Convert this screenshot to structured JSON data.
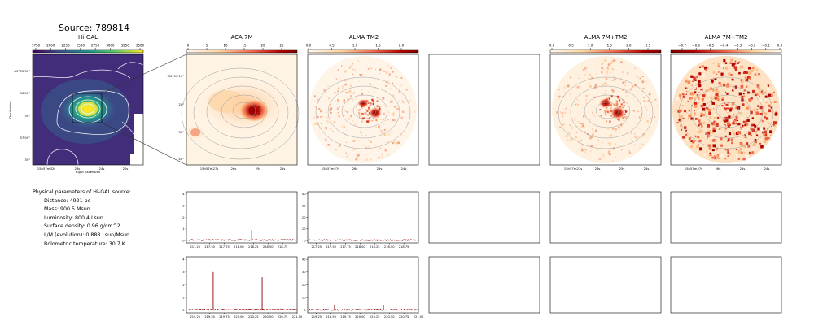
{
  "header": {
    "source_label": "Source: 789814"
  },
  "panels": {
    "higal": {
      "title": "Hi-GAL",
      "colorbar_ticks": [
        "1750",
        "2000",
        "2250",
        "2500",
        "2750",
        "3000",
        "3250",
        "3500"
      ],
      "ra_ticks": [
        "15h57m32s",
        "28s",
        "24s",
        "20s"
      ],
      "dec_ticks": [
        "-52°55'30\"",
        "56'00\"",
        "30\"",
        "57'00\"",
        "30\""
      ],
      "xlabel": "Right Ascension",
      "ylabel": "Declination"
    },
    "aca": {
      "title": "ACA 7M",
      "colorbar_ticks": [
        "0",
        "5",
        "10",
        "15",
        "20",
        "25"
      ],
      "ra_ticks": [
        "15h57m27s",
        "26s",
        "25s",
        "24s"
      ],
      "dec_ticks": [
        "-52°56'10\"",
        "20\"",
        "30\"",
        "40\""
      ]
    },
    "alma_tm2": {
      "title": "ALMA TM2",
      "colorbar_ticks": [
        "0.0",
        "0.5",
        "1.0",
        "1.5",
        "2.0"
      ],
      "ra_ticks": [
        "15h57m27s",
        "26s",
        "25s",
        "24s"
      ]
    },
    "alma_combo": {
      "title": "ALMA 7M+TM2",
      "colorbar_ticks": [
        "0.0",
        "0.5",
        "1.0",
        "1.5",
        "2.0",
        "2.5"
      ],
      "ra_ticks": [
        "15h57m27s",
        "26s",
        "25s",
        "24s"
      ]
    },
    "alma_combo_neg": {
      "title": "ALMA 7M+TM2",
      "colorbar_ticks": [
        "−0.7",
        "−0.6",
        "−0.5",
        "−0.4",
        "−0.3",
        "−0.2",
        "−0.1",
        "0.0"
      ],
      "ra_ticks": [
        "15h57m27s",
        "26s",
        "25s",
        "24s"
      ]
    }
  },
  "info": {
    "heading": "Physical parameters of Hi-GAL source:",
    "lines": [
      "Distance: 4921 pc",
      "Mass: 900.5 Msun",
      "Luminosity: 800.4 Lsun",
      "Surface density: 0.96 g/cm^2",
      "L/M (evolution): 0.888 Lsun/Msun",
      "Bolometric temperature: 30.7 K"
    ]
  },
  "chart_data": [
    {
      "type": "line",
      "panel": "aca_spectrum_1",
      "xlim": [
        217.1,
        219.0
      ],
      "ylim": [
        -0.2,
        4.2
      ],
      "x_ticks": [
        217.25,
        217.5,
        217.75,
        218.0,
        218.25,
        218.5,
        218.75
      ],
      "x_tick_labels": [
        "217.25",
        "217.50",
        "217.75",
        "218.00",
        "218.25",
        "218.50",
        "218.75"
      ],
      "y_ticks": [
        0,
        1,
        2,
        3,
        4
      ],
      "y_tick_labels": [
        "0",
        "1",
        "2",
        "3",
        "4"
      ],
      "baseline": 0.05,
      "peaks": [
        {
          "x": 218.22,
          "y": 0.9
        }
      ],
      "color": "#8b0000"
    },
    {
      "type": "line",
      "panel": "tm2_spectrum_1",
      "xlim": [
        217.1,
        219.0
      ],
      "ylim": [
        -2,
        42
      ],
      "x_ticks": [
        217.25,
        217.5,
        217.75,
        218.0,
        218.25,
        218.5,
        218.75
      ],
      "x_tick_labels": [
        "217.25",
        "217.50",
        "217.75",
        "218.00",
        "218.25",
        "218.50",
        "218.75"
      ],
      "y_ticks": [
        0,
        10,
        20,
        30,
        40
      ],
      "y_tick_labels": [
        "0",
        "10",
        "20",
        "30",
        "40"
      ],
      "baseline": 0.4,
      "peaks": [],
      "color": "#8b0000"
    },
    {
      "type": "line",
      "panel": "aca_spectrum_2",
      "xlim": [
        219.1,
        221.0
      ],
      "ylim": [
        -0.2,
        4.2
      ],
      "x_ticks": [
        219.25,
        219.5,
        219.75,
        220.0,
        220.25,
        220.5,
        220.75,
        221.0
      ],
      "x_tick_labels": [
        "219.25",
        "219.50",
        "219.75",
        "220.00",
        "220.25",
        "220.50",
        "220.75",
        "221.00"
      ],
      "y_ticks": [
        0,
        1,
        2,
        3,
        4
      ],
      "y_tick_labels": [
        "0",
        "1",
        "2",
        "3",
        "4"
      ],
      "baseline": 0.05,
      "peaks": [
        {
          "x": 219.56,
          "y": 3.0
        },
        {
          "x": 220.4,
          "y": 2.6
        }
      ],
      "color": "#8b0000"
    },
    {
      "type": "line",
      "panel": "tm2_spectrum_2",
      "xlim": [
        219.1,
        221.0
      ],
      "ylim": [
        -2,
        42
      ],
      "x_ticks": [
        219.25,
        219.5,
        219.75,
        220.0,
        220.25,
        220.5,
        220.75,
        221.0
      ],
      "x_tick_labels": [
        "219.25",
        "219.50",
        "219.75",
        "220.00",
        "220.25",
        "220.50",
        "220.75",
        "221.00"
      ],
      "y_ticks": [
        0,
        10,
        20,
        30,
        40
      ],
      "y_tick_labels": [
        "0",
        "10",
        "20",
        "30",
        "40"
      ],
      "baseline": 0.4,
      "peaks": [
        {
          "x": 219.56,
          "y": 4
        },
        {
          "x": 220.4,
          "y": 4
        }
      ],
      "color": "#8b0000"
    }
  ]
}
